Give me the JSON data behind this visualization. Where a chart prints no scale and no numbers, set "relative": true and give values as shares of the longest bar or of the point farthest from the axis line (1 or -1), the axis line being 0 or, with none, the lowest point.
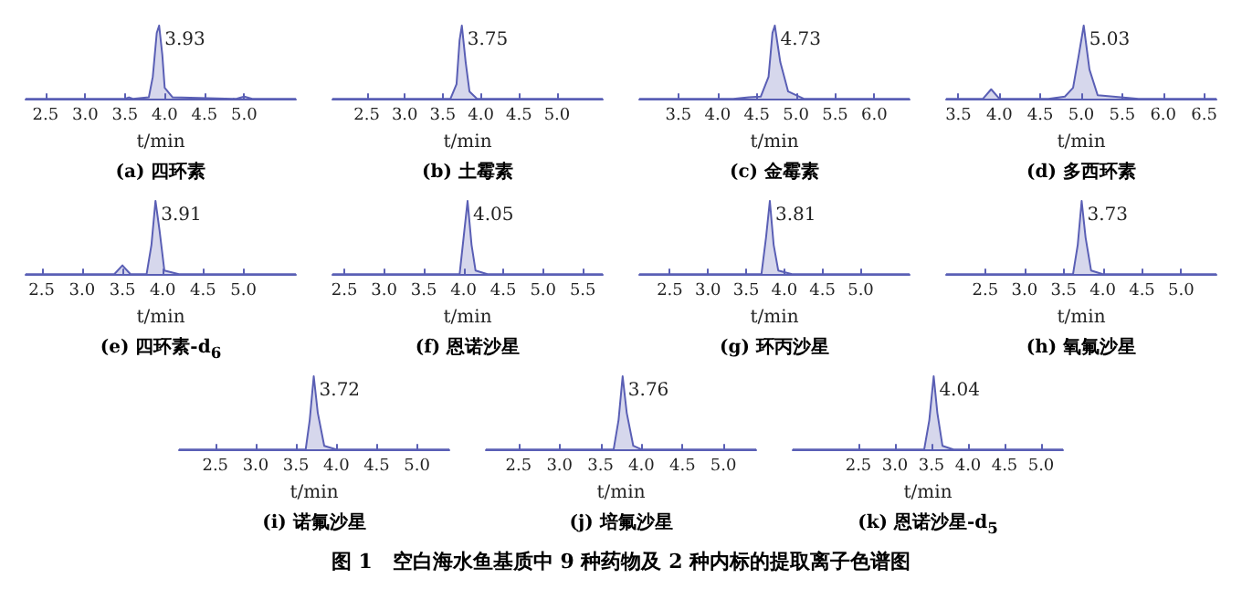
{
  "chart_data": [
    {
      "type": "area",
      "relative": true,
      "title": "(a) 四环素",
      "xlabel": "t/min",
      "xlim": [
        2.25,
        5.65
      ],
      "xticks": [
        2.5,
        {
          "value": 3,
          "label": "3.0"
        },
        3.5,
        {
          "value": 4,
          "label": "4.0"
        },
        4.5,
        {
          "value": 5,
          "label": "5.0"
        }
      ],
      "annotations": [
        {
          "text": "3.93",
          "x": 3.93,
          "y": 1
        }
      ],
      "series": [
        {
          "color": "#5a5fb5",
          "x": [
            2.25,
            3.5,
            3.55,
            3.6,
            3.8,
            3.85,
            3.9,
            3.93,
            3.97,
            4.0,
            4.1,
            4.9,
            5.0,
            5.1,
            5.65
          ],
          "values": [
            0,
            0,
            0.02,
            0,
            0.02,
            0.3,
            0.9,
            1,
            0.6,
            0.15,
            0.02,
            0,
            0.03,
            0,
            0
          ]
        }
      ]
    },
    {
      "type": "area",
      "relative": true,
      "title": "(b) 土霉素",
      "xlabel": "t/min",
      "xlim": [
        2.05,
        5.6
      ],
      "xticks": [
        2.5,
        {
          "value": 3,
          "label": "3.0"
        },
        3.5,
        {
          "value": 4,
          "label": "4.0"
        },
        4.5,
        {
          "value": 5,
          "label": "5.0"
        }
      ],
      "annotations": [
        {
          "text": "3.75",
          "x": 3.75,
          "y": 1
        }
      ],
      "series": [
        {
          "color": "#5a5fb5",
          "x": [
            2.05,
            3.6,
            3.68,
            3.72,
            3.75,
            3.8,
            3.85,
            3.95,
            5.6
          ],
          "values": [
            0,
            0,
            0.2,
            0.8,
            1,
            0.5,
            0.1,
            0,
            0
          ]
        }
      ]
    },
    {
      "type": "area",
      "relative": true,
      "title": "(c) 金霉素",
      "xlabel": "t/min",
      "xlim": [
        3.0,
        6.45
      ],
      "xticks": [
        3.5,
        {
          "value": 4,
          "label": "4.0"
        },
        4.5,
        {
          "value": 5,
          "label": "5.0"
        },
        5.5,
        {
          "value": 6,
          "label": "6.0"
        }
      ],
      "annotations": [
        {
          "text": "4.73",
          "x": 4.73,
          "y": 1
        }
      ],
      "series": [
        {
          "color": "#5a5fb5",
          "x": [
            3.0,
            4.2,
            4.4,
            4.55,
            4.65,
            4.7,
            4.73,
            4.8,
            4.9,
            5.1,
            6.45
          ],
          "values": [
            0,
            0,
            0.02,
            0.03,
            0.3,
            0.9,
            1,
            0.5,
            0.1,
            0,
            0
          ]
        }
      ]
    },
    {
      "type": "area",
      "relative": true,
      "title": "(d) 多西环素",
      "xlabel": "t/min",
      "xlim": [
        3.35,
        6.65
      ],
      "xticks": [
        3.5,
        {
          "value": 4,
          "label": "4.0"
        },
        4.5,
        {
          "value": 5,
          "label": "5.0"
        },
        5.5,
        {
          "value": 6,
          "label": "6.0"
        },
        6.5
      ],
      "annotations": [
        {
          "text": "5.03",
          "x": 5.03,
          "y": 1
        }
      ],
      "series": [
        {
          "color": "#5a5fb5",
          "x": [
            3.35,
            3.8,
            3.9,
            4.0,
            4.6,
            4.8,
            4.9,
            4.97,
            5.03,
            5.1,
            5.2,
            5.7,
            6.65
          ],
          "values": [
            0,
            0,
            0.13,
            0,
            0,
            0.03,
            0.15,
            0.6,
            1,
            0.4,
            0.05,
            0,
            0
          ]
        }
      ]
    },
    {
      "type": "area",
      "relative": true,
      "title": "(e) 四环素-d$_{6}$",
      "xlabel": "t/min",
      "xlim": [
        2.3,
        5.65
      ],
      "xticks": [
        2.5,
        {
          "value": 3,
          "label": "3.0"
        },
        3.5,
        {
          "value": 4,
          "label": "4.0"
        },
        4.5,
        {
          "value": 5,
          "label": "5.0"
        }
      ],
      "annotations": [
        {
          "text": "3.91",
          "x": 3.91,
          "y": 1
        }
      ],
      "series": [
        {
          "color": "#5a5fb5",
          "x": [
            2.3,
            3.4,
            3.5,
            3.6,
            3.8,
            3.86,
            3.91,
            3.96,
            4.02,
            4.2,
            5.65
          ],
          "values": [
            0,
            0,
            0.12,
            0,
            0,
            0.4,
            1,
            0.6,
            0.05,
            0,
            0
          ]
        }
      ]
    },
    {
      "type": "area",
      "relative": true,
      "title": "(f) 恩诺沙星",
      "xlabel": "t/min",
      "xlim": [
        2.35,
        5.75
      ],
      "xticks": [
        2.5,
        {
          "value": 3,
          "label": "3.0"
        },
        3.5,
        {
          "value": 4,
          "label": "4.0"
        },
        4.5,
        {
          "value": 5,
          "label": "5.0"
        },
        5.5
      ],
      "annotations": [
        {
          "text": "4.05",
          "x": 4.05,
          "y": 1
        }
      ],
      "series": [
        {
          "color": "#5a5fb5",
          "x": [
            2.35,
            3.95,
            4.0,
            4.05,
            4.1,
            4.15,
            4.3,
            5.75
          ],
          "values": [
            0,
            0,
            0.5,
            1,
            0.4,
            0.05,
            0,
            0
          ]
        }
      ]
    },
    {
      "type": "area",
      "relative": true,
      "title": "(g) 环丙沙星",
      "xlabel": "t/min",
      "xlim": [
        2.1,
        5.64
      ],
      "xticks": [
        2.5,
        {
          "value": 3,
          "label": "3.0"
        },
        3.5,
        {
          "value": 4,
          "label": "4.0"
        },
        4.5,
        {
          "value": 5,
          "label": "5.0"
        }
      ],
      "annotations": [
        {
          "text": "3.81",
          "x": 3.81,
          "y": 1
        }
      ],
      "series": [
        {
          "color": "#5a5fb5",
          "x": [
            2.1,
            3.7,
            3.76,
            3.81,
            3.86,
            3.92,
            4.1,
            5.64
          ],
          "values": [
            0,
            0,
            0.5,
            1,
            0.4,
            0.05,
            0,
            0
          ]
        }
      ]
    },
    {
      "type": "area",
      "relative": true,
      "title": "(h) 氧氟沙星",
      "xlabel": "t/min",
      "xlim": [
        2.0,
        5.45
      ],
      "xticks": [
        2.5,
        {
          "value": 3,
          "label": "3.0"
        },
        3.5,
        {
          "value": 4,
          "label": "4.0"
        },
        4.5,
        {
          "value": 5,
          "label": "5.0"
        }
      ],
      "annotations": [
        {
          "text": "3.73",
          "x": 3.73,
          "y": 1
        }
      ],
      "series": [
        {
          "color": "#5a5fb5",
          "x": [
            2.0,
            3.62,
            3.68,
            3.73,
            3.78,
            3.85,
            4.0,
            5.45
          ],
          "values": [
            0,
            0,
            0.4,
            1,
            0.5,
            0.05,
            0,
            0
          ]
        }
      ]
    },
    {
      "type": "area",
      "relative": true,
      "title": "(i) 诺氟沙星",
      "xlabel": "t/min",
      "xlim": [
        2.05,
        5.4
      ],
      "xticks": [
        2.5,
        {
          "value": 3,
          "label": "3.0"
        },
        3.5,
        {
          "value": 4,
          "label": "4.0"
        },
        4.5,
        {
          "value": 5,
          "label": "5.0"
        }
      ],
      "annotations": [
        {
          "text": "3.72",
          "x": 3.72,
          "y": 1
        }
      ],
      "series": [
        {
          "color": "#5a5fb5",
          "x": [
            2.05,
            3.62,
            3.67,
            3.72,
            3.77,
            3.85,
            4.0,
            5.4
          ],
          "values": [
            0,
            0,
            0.4,
            1,
            0.5,
            0.05,
            0,
            0
          ]
        }
      ]
    },
    {
      "type": "area",
      "relative": true,
      "title": "(j) 培氟沙星",
      "xlabel": "t/min",
      "xlim": [
        2.1,
        5.4
      ],
      "xticks": [
        2.5,
        {
          "value": 3,
          "label": "3.0"
        },
        3.5,
        {
          "value": 4,
          "label": "4.0"
        },
        4.5,
        {
          "value": 5,
          "label": "5.0"
        }
      ],
      "annotations": [
        {
          "text": "3.76",
          "x": 3.77,
          "y": 1
        }
      ],
      "series": [
        {
          "color": "#5a5fb5",
          "x": [
            2.1,
            3.66,
            3.72,
            3.77,
            3.82,
            3.9,
            4.0,
            5.4
          ],
          "values": [
            0,
            0,
            0.4,
            1,
            0.5,
            0.05,
            0,
            0
          ]
        }
      ]
    },
    {
      "type": "area",
      "relative": true,
      "title": "(k) 恩诺沙星-d$_{5}$",
      "xlabel": "t/min",
      "xlim": [
        1.6,
        5.3
      ],
      "xticks": [
        2.5,
        {
          "value": 3,
          "label": "3.0"
        },
        3.5,
        {
          "value": 4,
          "label": "4.0"
        },
        4.5,
        {
          "value": 5,
          "label": "5.0"
        }
      ],
      "annotations": [
        {
          "text": "4.04",
          "x": 3.53,
          "y": 1
        },
        "图 1　空白海水鱼基质中 9 种药物及 2 种内标的提取离子色谱图"
      ],
      "series": [
        {
          "color": "#5a5fb5",
          "x": [
            1.6,
            3.4,
            3.47,
            3.53,
            3.58,
            3.65,
            3.8,
            5.3
          ],
          "values": [
            0,
            0,
            0.4,
            1,
            0.5,
            0.05,
            0,
            0
          ]
        }
      ]
    }
  ]
}
